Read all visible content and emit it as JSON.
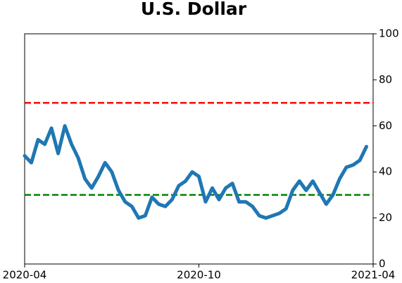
{
  "chart_data": {
    "type": "line",
    "title": "U.S. Dollar",
    "categories": [
      "2020-04",
      null,
      null,
      null,
      null,
      null,
      null,
      null,
      null,
      null,
      null,
      null,
      null,
      null,
      null,
      null,
      null,
      null,
      null,
      null,
      null,
      null,
      null,
      null,
      null,
      null,
      "2020-10",
      null,
      null,
      null,
      null,
      null,
      null,
      null,
      null,
      null,
      null,
      null,
      null,
      null,
      null,
      null,
      null,
      null,
      null,
      null,
      null,
      null,
      null,
      null,
      null,
      null,
      "2021-04"
    ],
    "series": [
      {
        "name": "U.S. Dollar",
        "color": "#1f77b4",
        "values": [
          47,
          44,
          54,
          52,
          59,
          48,
          60,
          52,
          46,
          37,
          33,
          38,
          44,
          40,
          32,
          27,
          25,
          20,
          21,
          29,
          26,
          25,
          28,
          34,
          36,
          40,
          38,
          27,
          33,
          28,
          33,
          35,
          27,
          27,
          25,
          21,
          20,
          21,
          22,
          24,
          32,
          36,
          32,
          36,
          31,
          26,
          30,
          37,
          42,
          43,
          45,
          51,
          null
        ]
      }
    ],
    "ylim": [
      0,
      100
    ],
    "yticks": [
      0,
      20,
      40,
      60,
      80,
      100
    ],
    "hlines": [
      {
        "value": 70,
        "color": "red"
      },
      {
        "value": 30,
        "color": "green"
      }
    ]
  }
}
